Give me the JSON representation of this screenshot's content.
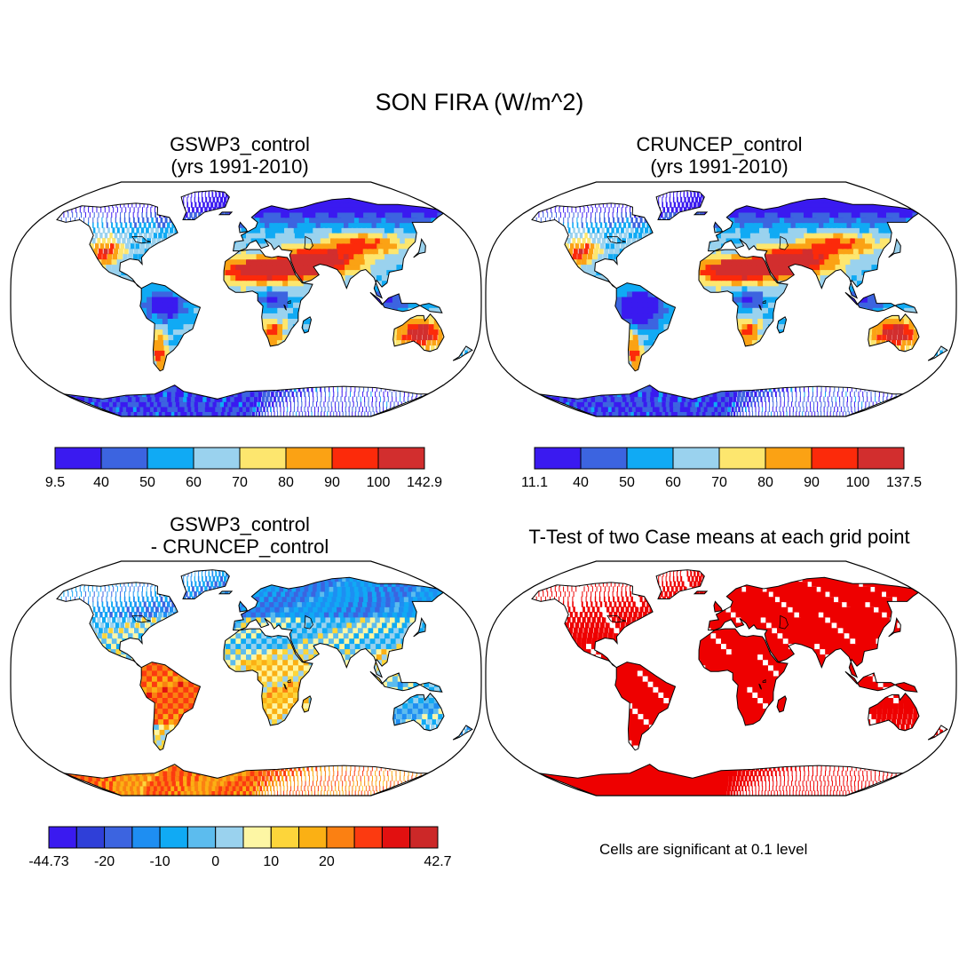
{
  "title": "SON FIRA (W/m^2)",
  "panels": [
    {
      "id": "gswp3",
      "title_line1": "GSWP3_control",
      "title_line2": "(yrs 1991-2010)",
      "field": "abs_gswp3"
    },
    {
      "id": "cruncep",
      "title_line1": "CRUNCEP_control",
      "title_line2": "(yrs 1991-2010)",
      "field": "abs_cruncep"
    },
    {
      "id": "diff",
      "title_line1": "GSWP3_control",
      "title_line2": "- CRUNCEP_control",
      "field": "diff"
    },
    {
      "id": "ttest",
      "title_line1": "T-Test of two Case means at each grid point",
      "title_line2": "",
      "field": "ttest"
    }
  ],
  "colorbars": {
    "gswp3": {
      "colors": [
        "#3a1af0",
        "#3c64e0",
        "#10aaf4",
        "#9ad2ee",
        "#fde66e",
        "#fba214",
        "#fc2a0a",
        "#d22e2e"
      ],
      "labels": [
        "9.5",
        "40",
        "50",
        "60",
        "70",
        "80",
        "90",
        "100",
        "142.9"
      ]
    },
    "cruncep": {
      "colors": [
        "#3a1af0",
        "#3c64e0",
        "#10aaf4",
        "#9ad2ee",
        "#fde66e",
        "#fba214",
        "#fc2a0a",
        "#d22e2e"
      ],
      "labels": [
        "11.1",
        "40",
        "50",
        "60",
        "70",
        "80",
        "90",
        "100",
        "137.5"
      ]
    },
    "diff": {
      "colors": [
        "#3a1af0",
        "#2f3fd8",
        "#3c64e0",
        "#1e8ef2",
        "#10aaf4",
        "#5cbcee",
        "#9ad2ee",
        "#fdf6a4",
        "#fdd53a",
        "#fbb014",
        "#fb8012",
        "#fc3a10",
        "#e21010",
        "#cc2828"
      ],
      "labels": [
        "-44.73",
        "",
        "-20",
        "",
        "-10",
        "",
        "0",
        "",
        "10",
        "",
        "20",
        "",
        "",
        "",
        "42.7"
      ]
    }
  },
  "ttest_note": "Cells are significant at 0.1 level",
  "significance_level": 0.1,
  "chart_data": {
    "type": "map",
    "projection": "Robinson",
    "variable": "FIRA",
    "season": "SON",
    "units": "W/m^2",
    "abs_levels_gswp3": [
      9.5,
      40,
      50,
      60,
      70,
      80,
      90,
      100,
      142.9
    ],
    "abs_levels_cruncep": [
      11.1,
      40,
      50,
      60,
      70,
      80,
      90,
      100,
      137.5
    ],
    "diff_range": [
      -44.73,
      42.7
    ]
  }
}
